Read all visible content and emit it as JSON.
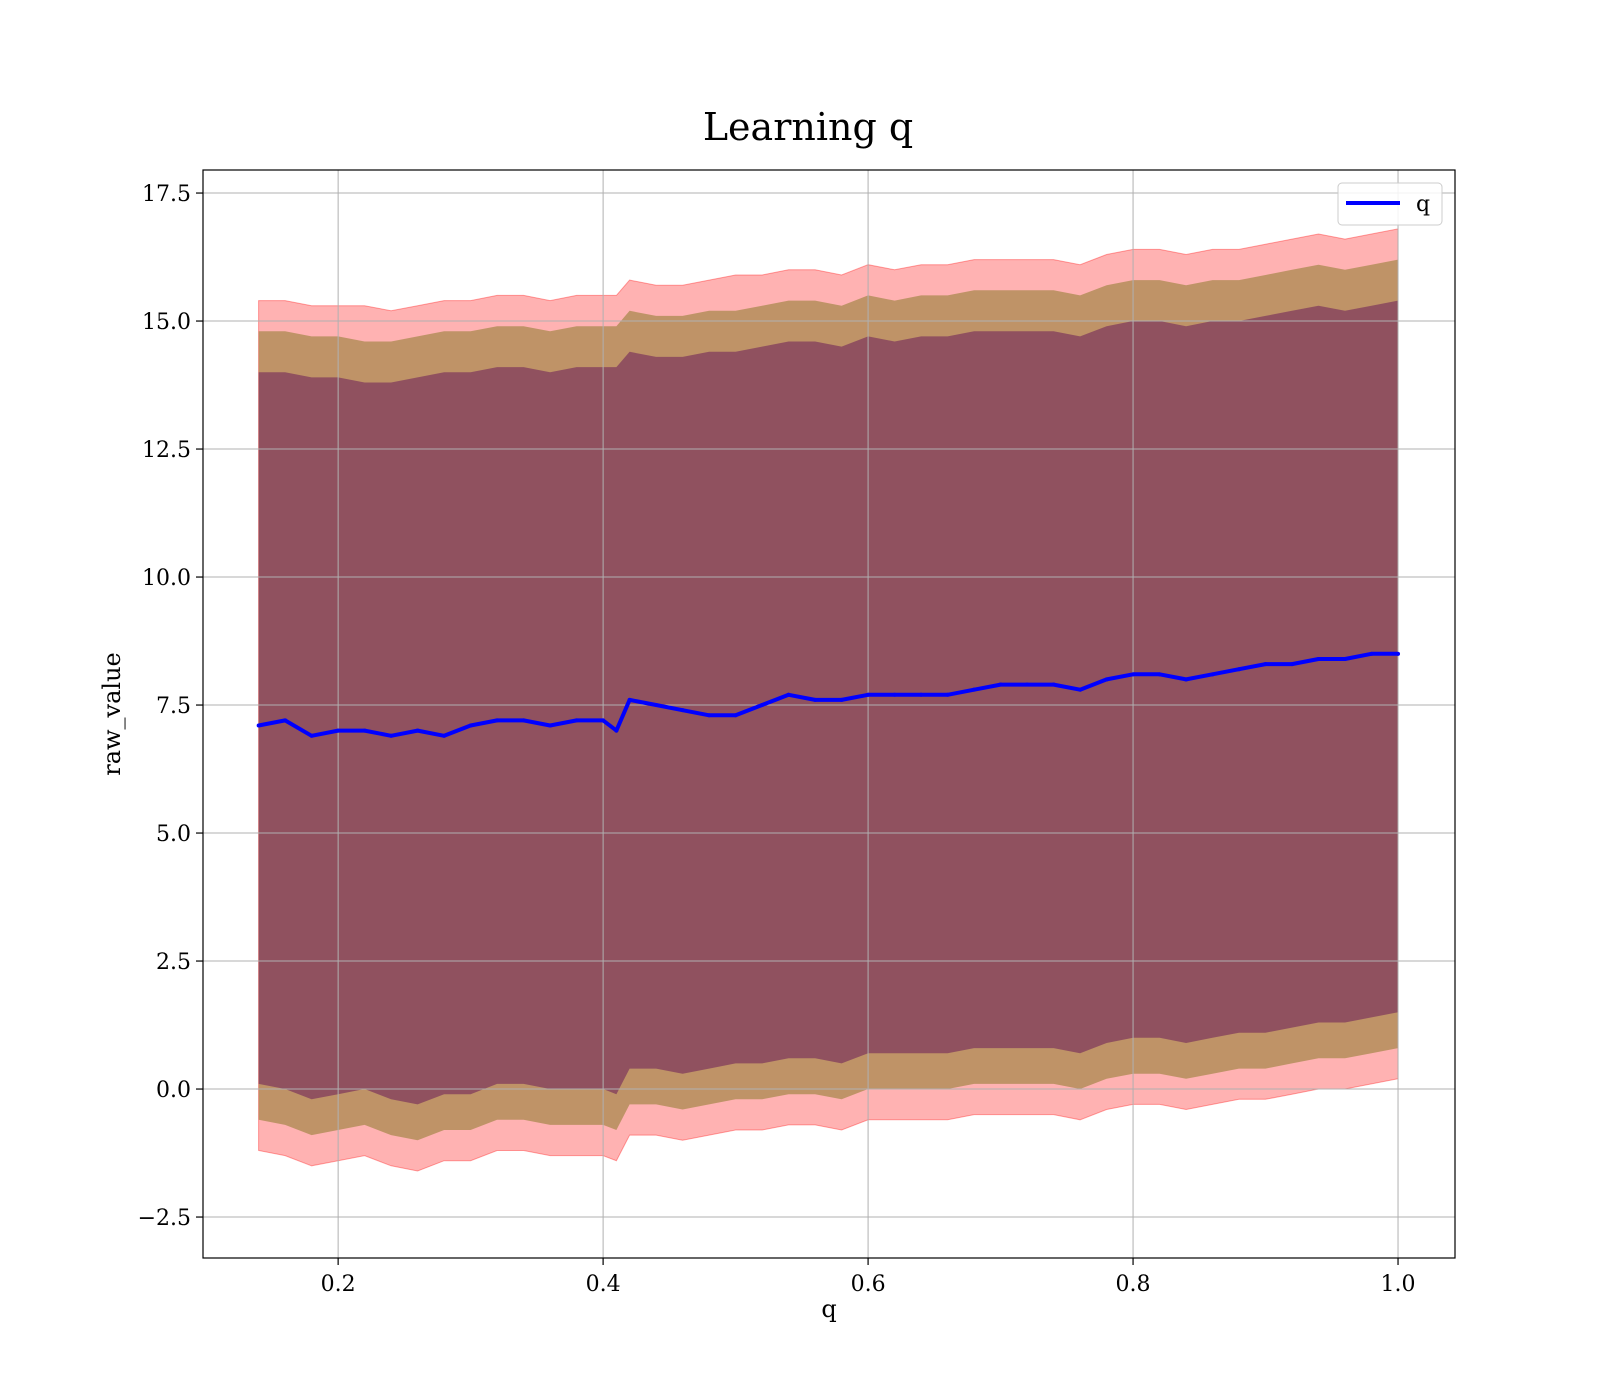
{
  "chart_data": {
    "type": "line",
    "title": "Learning q",
    "xlabel": "q",
    "ylabel": "raw_value",
    "xlim": [
      0.098,
      1.043
    ],
    "ylim": [
      -3.3,
      17.95
    ],
    "xticks": [
      0.2,
      0.4,
      0.6,
      0.8,
      1.0
    ],
    "xtick_labels": [
      "0.2",
      "0.4",
      "0.6",
      "0.8",
      "1.0"
    ],
    "yticks": [
      -2.5,
      0.0,
      2.5,
      5.0,
      7.5,
      10.0,
      12.5,
      15.0,
      17.5
    ],
    "ytick_labels": [
      "−2.5",
      "0.0",
      "2.5",
      "5.0",
      "7.5",
      "10.0",
      "12.5",
      "15.0",
      "17.5"
    ],
    "grid": true,
    "legend": {
      "position": "top-right",
      "entries": [
        "q"
      ]
    },
    "colors": {
      "line": "#0000ff",
      "band": "#ff0000",
      "inner_band": "#6a1b5a",
      "mid_band": "#8a7a2a",
      "grid": "#b0b0b0"
    },
    "series": [
      {
        "name": "q",
        "x": [
          0.14,
          0.16,
          0.18,
          0.2,
          0.22,
          0.24,
          0.26,
          0.28,
          0.3,
          0.32,
          0.34,
          0.36,
          0.38,
          0.4,
          0.41,
          0.42,
          0.44,
          0.46,
          0.48,
          0.5,
          0.52,
          0.54,
          0.56,
          0.58,
          0.6,
          0.62,
          0.64,
          0.66,
          0.68,
          0.7,
          0.72,
          0.74,
          0.76,
          0.78,
          0.8,
          0.82,
          0.84,
          0.86,
          0.88,
          0.9,
          0.92,
          0.94,
          0.96,
          0.98,
          1.0
        ],
        "y": [
          7.1,
          7.2,
          6.9,
          7.0,
          7.0,
          6.9,
          7.0,
          6.9,
          7.1,
          7.2,
          7.2,
          7.1,
          7.2,
          7.2,
          7.0,
          7.6,
          7.5,
          7.4,
          7.3,
          7.3,
          7.5,
          7.7,
          7.6,
          7.6,
          7.7,
          7.7,
          7.7,
          7.7,
          7.8,
          7.9,
          7.9,
          7.9,
          7.8,
          8.0,
          8.1,
          8.1,
          8.0,
          8.1,
          8.2,
          8.3,
          8.3,
          8.4,
          8.4,
          8.5,
          8.5
        ],
        "band_outer_upper": [
          15.4,
          15.4,
          15.3,
          15.3,
          15.3,
          15.2,
          15.3,
          15.4,
          15.4,
          15.5,
          15.5,
          15.4,
          15.5,
          15.5,
          15.5,
          15.8,
          15.7,
          15.7,
          15.8,
          15.9,
          15.9,
          16.0,
          16.0,
          15.9,
          16.1,
          16.0,
          16.1,
          16.1,
          16.2,
          16.2,
          16.2,
          16.2,
          16.1,
          16.3,
          16.4,
          16.4,
          16.3,
          16.4,
          16.4,
          16.5,
          16.6,
          16.7,
          16.6,
          16.7,
          16.8
        ],
        "band_outer_lower": [
          -1.2,
          -1.3,
          -1.5,
          -1.4,
          -1.3,
          -1.5,
          -1.6,
          -1.4,
          -1.4,
          -1.2,
          -1.2,
          -1.3,
          -1.3,
          -1.3,
          -1.4,
          -0.9,
          -0.9,
          -1.0,
          -0.9,
          -0.8,
          -0.8,
          -0.7,
          -0.7,
          -0.8,
          -0.6,
          -0.6,
          -0.6,
          -0.6,
          -0.5,
          -0.5,
          -0.5,
          -0.5,
          -0.6,
          -0.4,
          -0.3,
          -0.3,
          -0.4,
          -0.3,
          -0.2,
          -0.2,
          -0.1,
          0.0,
          0.0,
          0.1,
          0.2
        ],
        "band_mid_upper": [
          14.8,
          14.8,
          14.7,
          14.7,
          14.6,
          14.6,
          14.7,
          14.8,
          14.8,
          14.9,
          14.9,
          14.8,
          14.9,
          14.9,
          14.9,
          15.2,
          15.1,
          15.1,
          15.2,
          15.2,
          15.3,
          15.4,
          15.4,
          15.3,
          15.5,
          15.4,
          15.5,
          15.5,
          15.6,
          15.6,
          15.6,
          15.6,
          15.5,
          15.7,
          15.8,
          15.8,
          15.7,
          15.8,
          15.8,
          15.9,
          16.0,
          16.1,
          16.0,
          16.1,
          16.2
        ],
        "band_mid_lower": [
          -0.6,
          -0.7,
          -0.9,
          -0.8,
          -0.7,
          -0.9,
          -1.0,
          -0.8,
          -0.8,
          -0.6,
          -0.6,
          -0.7,
          -0.7,
          -0.7,
          -0.8,
          -0.3,
          -0.3,
          -0.4,
          -0.3,
          -0.2,
          -0.2,
          -0.1,
          -0.1,
          -0.2,
          0.0,
          0.0,
          0.0,
          0.0,
          0.1,
          0.1,
          0.1,
          0.1,
          0.0,
          0.2,
          0.3,
          0.3,
          0.2,
          0.3,
          0.4,
          0.4,
          0.5,
          0.6,
          0.6,
          0.7,
          0.8
        ],
        "band_inner_upper": [
          14.0,
          14.0,
          13.9,
          13.9,
          13.8,
          13.8,
          13.9,
          14.0,
          14.0,
          14.1,
          14.1,
          14.0,
          14.1,
          14.1,
          14.1,
          14.4,
          14.3,
          14.3,
          14.4,
          14.4,
          14.5,
          14.6,
          14.6,
          14.5,
          14.7,
          14.6,
          14.7,
          14.7,
          14.8,
          14.8,
          14.8,
          14.8,
          14.7,
          14.9,
          15.0,
          15.0,
          14.9,
          15.0,
          15.0,
          15.1,
          15.2,
          15.3,
          15.2,
          15.3,
          15.4
        ],
        "band_inner_lower": [
          0.1,
          0.0,
          -0.2,
          -0.1,
          0.0,
          -0.2,
          -0.3,
          -0.1,
          -0.1,
          0.1,
          0.1,
          0.0,
          0.0,
          0.0,
          -0.1,
          0.4,
          0.4,
          0.3,
          0.4,
          0.5,
          0.5,
          0.6,
          0.6,
          0.5,
          0.7,
          0.7,
          0.7,
          0.7,
          0.8,
          0.8,
          0.8,
          0.8,
          0.7,
          0.9,
          1.0,
          1.0,
          0.9,
          1.0,
          1.1,
          1.1,
          1.2,
          1.3,
          1.3,
          1.4,
          1.5
        ]
      }
    ]
  }
}
